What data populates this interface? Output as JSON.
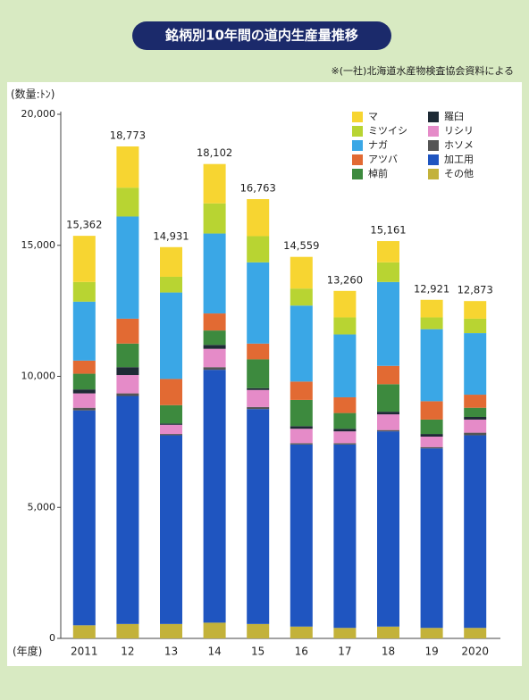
{
  "chart_data": {
    "type": "stacked-bar",
    "title": "銘柄別10年間の道内生産量推移",
    "source": "※(一社)北海道水産物検査協会資料による",
    "y_label": "(数量:ﾄﾝ)",
    "x_label": "(年度)",
    "categories": [
      "2011",
      "12",
      "13",
      "14",
      "15",
      "16",
      "17",
      "18",
      "19",
      "2020"
    ],
    "totals": [
      {
        "value": 15362,
        "label": "15,362"
      },
      {
        "value": 18773,
        "label": "18,773"
      },
      {
        "value": 14931,
        "label": "14,931"
      },
      {
        "value": 18102,
        "label": "18,102"
      },
      {
        "value": 16763,
        "label": "16,763"
      },
      {
        "value": 14559,
        "label": "14,559"
      },
      {
        "value": 13260,
        "label": "13,260"
      },
      {
        "value": 15161,
        "label": "15,161"
      },
      {
        "value": 12921,
        "label": "12,921"
      },
      {
        "value": 12873,
        "label": "12,873"
      }
    ],
    "series": [
      {
        "name": "マ",
        "color": "#f7d531",
        "values": [
          1762,
          1573,
          1131,
          1502,
          1413,
          1209,
          1010,
          811,
          671,
          673
        ]
      },
      {
        "name": "ミツイシ",
        "color": "#b8d432",
        "values": [
          750,
          1100,
          600,
          1150,
          1000,
          650,
          650,
          750,
          450,
          550
        ]
      },
      {
        "name": "ナガ",
        "color": "#3aa7e6",
        "values": [
          2250,
          3900,
          3300,
          3050,
          3100,
          2900,
          2400,
          3200,
          2750,
          2350
        ]
      },
      {
        "name": "アツバ",
        "color": "#e26a33",
        "values": [
          500,
          950,
          1000,
          650,
          600,
          700,
          600,
          700,
          700,
          500
        ]
      },
      {
        "name": "棹前",
        "color": "#3d8a3e",
        "values": [
          600,
          900,
          700,
          550,
          1100,
          1000,
          600,
          1050,
          550,
          350
        ]
      },
      {
        "name": "羅臼",
        "color": "#1e2a35",
        "values": [
          150,
          300,
          50,
          150,
          70,
          100,
          100,
          100,
          100,
          100
        ]
      },
      {
        "name": "リシリ",
        "color": "#e58bc8",
        "values": [
          550,
          700,
          350,
          700,
          650,
          550,
          450,
          600,
          400,
          500
        ]
      },
      {
        "name": "ホソメ",
        "color": "#555555",
        "values": [
          100,
          100,
          50,
          100,
          80,
          50,
          50,
          50,
          50,
          100
        ]
      },
      {
        "name": "加工用",
        "color": "#1f55c0",
        "values": [
          8200,
          8700,
          7200,
          9650,
          8200,
          6950,
          7000,
          7450,
          6850,
          7350
        ]
      },
      {
        "name": "その他",
        "color": "#c3b23a",
        "values": [
          500,
          550,
          550,
          600,
          550,
          450,
          400,
          450,
          400,
          400
        ]
      }
    ],
    "ylim": [
      0,
      20000
    ],
    "yticks": [
      0,
      {
        "value": 5000,
        "label": "5,000"
      },
      {
        "value": 10000,
        "label": "10,000"
      },
      {
        "value": 15000,
        "label": "15,000"
      },
      {
        "value": 20000,
        "label": "20,000"
      }
    ],
    "grid": false
  }
}
